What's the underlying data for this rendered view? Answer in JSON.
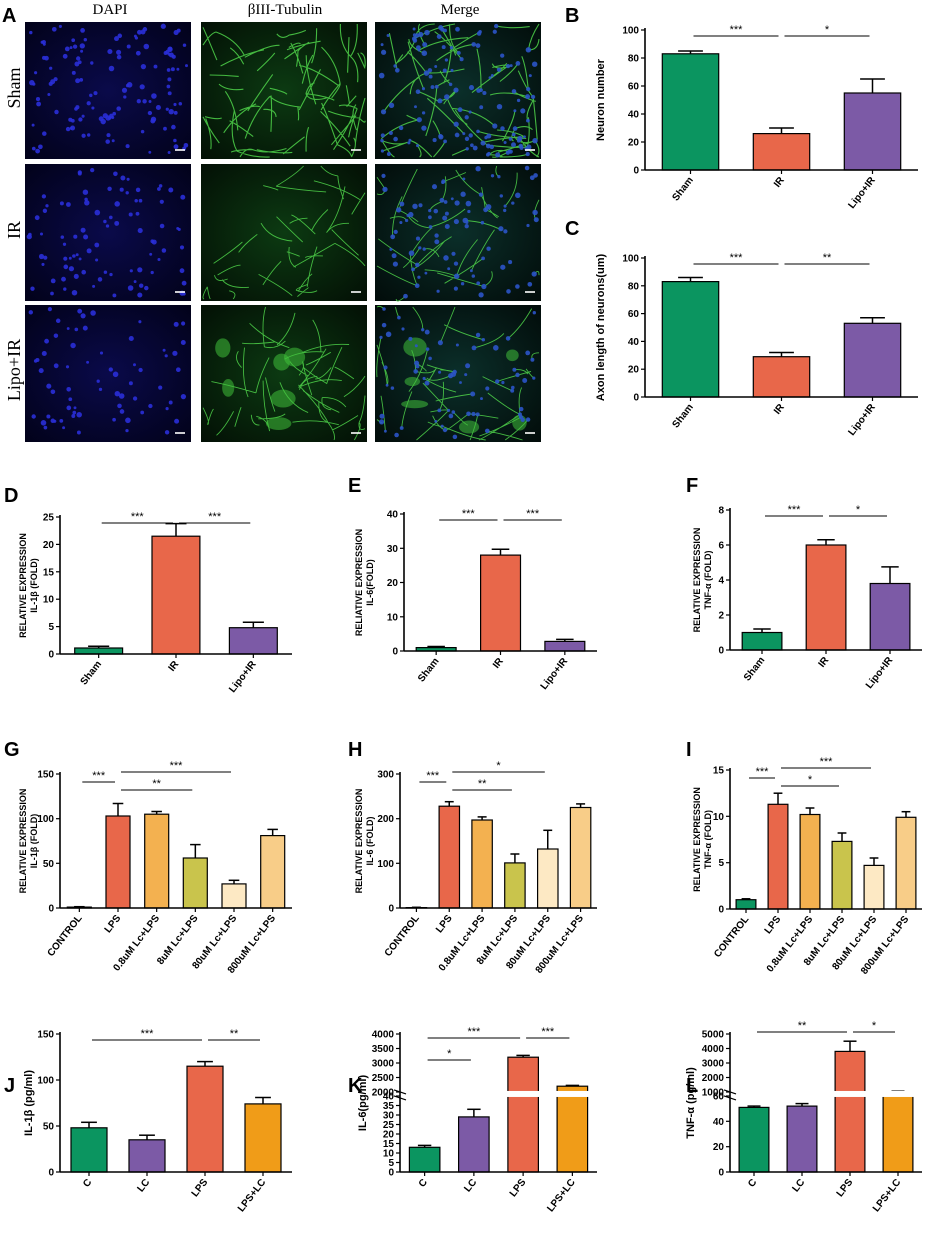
{
  "figure": {
    "micrographs": {
      "panel_label": "A",
      "columns": [
        "DAPI",
        "βIII-Tubulin",
        "Merge"
      ],
      "rows": [
        "Sham",
        "IR",
        "Lipo+IR"
      ]
    }
  },
  "chart_data": [
    {
      "id": "B",
      "panel_label": "B",
      "type": "bar",
      "categories": [
        "Sham",
        "IR",
        "Lipo+IR"
      ],
      "values": [
        83,
        26,
        55
      ],
      "errors": [
        2,
        4,
        10
      ],
      "colors": [
        "#0b9560",
        "#e8674a",
        "#7c5aa6"
      ],
      "ylabel": "Neuron number",
      "ylim": [
        0,
        100
      ],
      "yticks": [
        0,
        20,
        40,
        60,
        80,
        100
      ],
      "rotate_x": true,
      "sig": [
        {
          "from": 0,
          "to": 1,
          "text": "***"
        },
        {
          "from": 1,
          "to": 2,
          "text": "*"
        }
      ]
    },
    {
      "id": "C",
      "panel_label": "C",
      "type": "bar",
      "categories": [
        "Sham",
        "IR",
        "Lipo+IR"
      ],
      "values": [
        83,
        29,
        53
      ],
      "errors": [
        3,
        3,
        4
      ],
      "colors": [
        "#0b9560",
        "#e8674a",
        "#7c5aa6"
      ],
      "ylabel": "Axon length of neurons(um)",
      "ylim": [
        0,
        100
      ],
      "yticks": [
        0,
        20,
        40,
        60,
        80,
        100
      ],
      "rotate_x": true,
      "sig": [
        {
          "from": 0,
          "to": 1,
          "text": "***"
        },
        {
          "from": 1,
          "to": 2,
          "text": "**"
        }
      ]
    },
    {
      "id": "D",
      "panel_label": "D",
      "type": "bar",
      "categories": [
        "Sham",
        "IR",
        "Lipo+IR"
      ],
      "values": [
        1.1,
        21.5,
        4.8
      ],
      "errors": [
        0.3,
        2.3,
        1.0
      ],
      "colors": [
        "#0b9560",
        "#e8674a",
        "#7c5aa6"
      ],
      "ylabel": [
        "RELATIVE EXPRESSION",
        "IL-1β (FOLD)"
      ],
      "ylim": [
        0,
        25
      ],
      "yticks": [
        0,
        5,
        10,
        15,
        20,
        25
      ],
      "rotate_x": true,
      "sig": [
        {
          "from": 0,
          "to": 1,
          "text": "***"
        },
        {
          "from": 1,
          "to": 2,
          "text": "***"
        }
      ]
    },
    {
      "id": "E",
      "panel_label": "E",
      "type": "bar",
      "categories": [
        "Sham",
        "IR",
        "Lipo+IR"
      ],
      "values": [
        1.0,
        28,
        2.8
      ],
      "errors": [
        0.3,
        1.7,
        0.6
      ],
      "colors": [
        "#0b9560",
        "#e8674a",
        "#7c5aa6"
      ],
      "ylabel": [
        "RELIATIVE EXPRESSION",
        "IL-6(FOLD)"
      ],
      "ylim": [
        0,
        40
      ],
      "yticks": [
        0,
        10,
        20,
        30,
        40
      ],
      "rotate_x": true,
      "sig": [
        {
          "from": 0,
          "to": 1,
          "text": "***"
        },
        {
          "from": 1,
          "to": 2,
          "text": "***"
        }
      ]
    },
    {
      "id": "F",
      "panel_label": "F",
      "type": "bar",
      "categories": [
        "Sham",
        "IR",
        "Lipo+IR"
      ],
      "values": [
        1.0,
        6.0,
        3.8
      ],
      "errors": [
        0.2,
        0.3,
        0.95
      ],
      "colors": [
        "#0b9560",
        "#e8674a",
        "#7c5aa6"
      ],
      "ylabel": [
        "RELATIVE EXPRESSION",
        "TNF-α (FOLD)"
      ],
      "ylim": [
        0,
        8
      ],
      "yticks": [
        0,
        2,
        4,
        6,
        8
      ],
      "rotate_x": true,
      "sig": [
        {
          "from": 0,
          "to": 1,
          "text": "***"
        },
        {
          "from": 1,
          "to": 2,
          "text": "*"
        }
      ]
    },
    {
      "id": "G",
      "panel_label": "G",
      "type": "bar",
      "categories": [
        "CONTROL",
        "LPS",
        "0.8uM Lc+LPS",
        "8uM Lc+LPS",
        "80uM Lc+LPS",
        "800uM Lc+LPS"
      ],
      "values": [
        1,
        103,
        105,
        56,
        27,
        81
      ],
      "errors": [
        0.5,
        14,
        3,
        15,
        4,
        7
      ],
      "colors": [
        "#0b9560",
        "#e8674a",
        "#f3b150",
        "#c9c44c",
        "#fde9c4",
        "#f8cd88"
      ],
      "ylabel": [
        "RELATIVE EXPRESSION",
        "IL-1β (FOLD)"
      ],
      "ylim": [
        0,
        150
      ],
      "yticks": [
        0,
        50,
        100,
        150
      ],
      "rotate_x": true,
      "sig": [
        {
          "from": 0,
          "to": 1,
          "text": "***"
        },
        {
          "from": 1,
          "to": 3,
          "text": "**"
        },
        {
          "from": 1,
          "to": 4,
          "text": "***"
        }
      ]
    },
    {
      "id": "H",
      "panel_label": "H",
      "type": "bar",
      "categories": [
        "CONTROL",
        "LPS",
        "0.8uM Lc+LPS",
        "8uM Lc+LPS",
        "80uM Lc+LPS",
        "800uM Lc+LPS"
      ],
      "values": [
        1,
        228,
        197,
        101,
        132,
        225
      ],
      "errors": [
        0.5,
        10,
        7,
        20,
        42,
        8
      ],
      "colors": [
        "#0b9560",
        "#e8674a",
        "#f3b150",
        "#c9c44c",
        "#fde9c4",
        "#f8cd88"
      ],
      "ylabel": [
        "RELATIVE EXPRESSION",
        "IL-6 (FOLD)"
      ],
      "ylim": [
        0,
        300
      ],
      "yticks": [
        0,
        100,
        200,
        300
      ],
      "rotate_x": true,
      "sig": [
        {
          "from": 0,
          "to": 1,
          "text": "***"
        },
        {
          "from": 1,
          "to": 3,
          "text": "**"
        },
        {
          "from": 1,
          "to": 4,
          "text": "*"
        }
      ]
    },
    {
      "id": "I",
      "panel_label": "I",
      "type": "bar",
      "categories": [
        "CONTROL",
        "LPS",
        "0.8uM Lc+LPS",
        "8uM Lc+LPS",
        "80uM Lc+LPS",
        "800uM Lc+LPS"
      ],
      "values": [
        1.0,
        11.3,
        10.2,
        7.3,
        4.7,
        9.9
      ],
      "errors": [
        0.1,
        1.2,
        0.7,
        0.9,
        0.8,
        0.6
      ],
      "colors": [
        "#0b9560",
        "#e8674a",
        "#f3b150",
        "#c9c44c",
        "#fde9c4",
        "#f8cd88"
      ],
      "ylabel": [
        "RELATIVE EXPRESSION",
        "TNF-α (FOLD)"
      ],
      "ylim": [
        0,
        15
      ],
      "yticks": [
        0,
        5,
        10,
        15
      ],
      "rotate_x": true,
      "sig": [
        {
          "from": 0,
          "to": 1,
          "text": "***"
        },
        {
          "from": 1,
          "to": 3,
          "text": "*"
        },
        {
          "from": 1,
          "to": 4,
          "text": "***"
        }
      ]
    },
    {
      "id": "J",
      "panel_label": "J",
      "type": "bar",
      "categories": [
        "C",
        "LC",
        "LPS",
        "LPS+LC"
      ],
      "values": [
        48,
        35,
        115,
        74
      ],
      "errors": [
        6,
        5,
        5,
        7
      ],
      "colors": [
        "#0b9560",
        "#7c5aa6",
        "#e8674a",
        "#f09c18"
      ],
      "ylabel": "IL-1β (pg/ml)",
      "ylim": [
        0,
        150
      ],
      "yticks": [
        0,
        50,
        100,
        150
      ],
      "rotate_x": true,
      "sig": [
        {
          "from": 0,
          "to": 2,
          "text": "***"
        },
        {
          "from": 2,
          "to": 3,
          "text": "**"
        }
      ]
    },
    {
      "id": "K",
      "panel_label": "K",
      "type": "bar",
      "categories": [
        "C",
        "LC",
        "LPS",
        "LPS+LC"
      ],
      "values": [
        13,
        29,
        3200,
        2200
      ],
      "errors": [
        1,
        4,
        60,
        25
      ],
      "colors": [
        "#0b9560",
        "#7c5aa6",
        "#e8674a",
        "#f09c18"
      ],
      "ylabel": "IL-6(pg/ml)",
      "broken_axis": {
        "lower": [
          0,
          40
        ],
        "upper": [
          2000,
          4000
        ]
      },
      "yticks": [
        0,
        5,
        10,
        15,
        20,
        25,
        30,
        35,
        40,
        2000,
        2500,
        3000,
        3500,
        4000
      ],
      "rotate_x": true,
      "sig": [
        {
          "from": 0,
          "to": 1,
          "text": "*"
        },
        {
          "from": 0,
          "to": 2,
          "text": "***"
        },
        {
          "from": 2,
          "to": 3,
          "text": "***"
        }
      ]
    },
    {
      "id": "L",
      "panel_label": "L",
      "type": "bar",
      "categories": [
        "C",
        "LC",
        "LPS",
        "LPS+LC"
      ],
      "values": [
        51,
        52,
        3800,
        1000
      ],
      "errors": [
        1,
        2,
        700,
        50
      ],
      "colors": [
        "#0b9560",
        "#7c5aa6",
        "#e8674a",
        "#f09c18"
      ],
      "ylabel": "TNF-α (pg/ml)",
      "broken_axis": {
        "lower": [
          0,
          60
        ],
        "upper": [
          1000,
          5000
        ]
      },
      "yticks": [
        0,
        20,
        40,
        60,
        1000,
        2000,
        3000,
        4000,
        5000
      ],
      "rotate_x": true,
      "sig": [
        {
          "from": 0,
          "to": 2,
          "text": "**"
        },
        {
          "from": 2,
          "to": 3,
          "text": "*"
        }
      ]
    }
  ]
}
